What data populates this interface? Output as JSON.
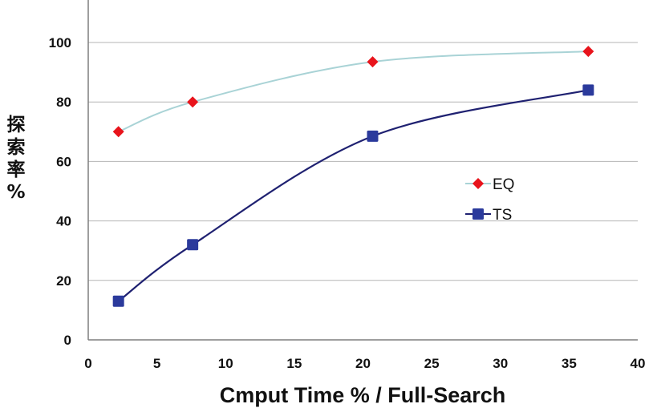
{
  "chart_data": {
    "type": "line",
    "title": "",
    "xlabel": "Cmput Time % / Full-Search",
    "ylabel_chars": [
      "探",
      "索",
      "率",
      "%"
    ],
    "xlim": [
      0,
      40
    ],
    "ylim": [
      0,
      100
    ],
    "x_ticks": [
      "0",
      "5",
      "10",
      "15",
      "20",
      "25",
      "30",
      "35",
      "40"
    ],
    "y_ticks": [
      "0",
      "20",
      "40",
      "60",
      "80",
      "100"
    ],
    "grid": "horizontal",
    "legend_position": "center-right",
    "series": [
      {
        "name": "EQ",
        "marker": "diamond",
        "marker_color": "#e8141c",
        "line_color": "#a9d3d6",
        "x": [
          2.2,
          7.6,
          20.7,
          36.4
        ],
        "y": [
          70,
          80,
          93.5,
          97
        ]
      },
      {
        "name": "TS",
        "marker": "square",
        "marker_color": "#2b3a9c",
        "line_color": "#1f2171",
        "x": [
          2.2,
          7.6,
          20.7,
          36.4
        ],
        "y": [
          13,
          32,
          68.5,
          84
        ]
      }
    ]
  }
}
